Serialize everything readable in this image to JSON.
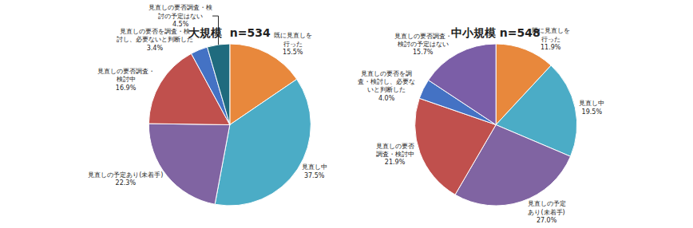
{
  "chart_data": [
    {
      "type": "pie",
      "title": "大規模  n=534",
      "categories": [
        "既に見直しを\n行った",
        "見直し中",
        "見直しの予定あり(未着手)",
        "見直しの要否調査・\n検討中",
        "見直しの要否を調査・検\n討し、必要ないと判断した",
        "見直しの要否調査・検\n討の予定はない"
      ],
      "values": [
        15.5,
        37.5,
        22.3,
        16.9,
        3.4,
        4.5
      ],
      "value_labels": [
        "15.5%",
        "37.5%",
        "22.3%",
        "16.9%",
        "3.4%",
        "4.5%"
      ],
      "colors": [
        "#E8883C",
        "#4BACC6",
        "#8064A2",
        "#C0504D",
        "#4472C4",
        "#1F6B7E"
      ],
      "data_labels": true
    },
    {
      "type": "pie",
      "title": "中小規模 n=548",
      "categories": [
        "既に見直しを\n行った",
        "見直し中",
        "見直しの予定\nあり(未着手)",
        "見直しの要否\n調査・検討中",
        "見直しの要否を調\n査・検討し、必要な\nいと判断した",
        "見直しの要否調査・\n検討の予定はない"
      ],
      "values": [
        11.9,
        19.5,
        27.0,
        21.9,
        4.0,
        15.7
      ],
      "value_labels": [
        "11.9%",
        "19.5%",
        "27.0%",
        "21.9%",
        "4.0%",
        "15.7%"
      ],
      "colors": [
        "#E8883C",
        "#4BACC6",
        "#8064A2",
        "#C0504D",
        "#4472C4",
        "#7B5EA7"
      ],
      "data_labels": true
    }
  ]
}
